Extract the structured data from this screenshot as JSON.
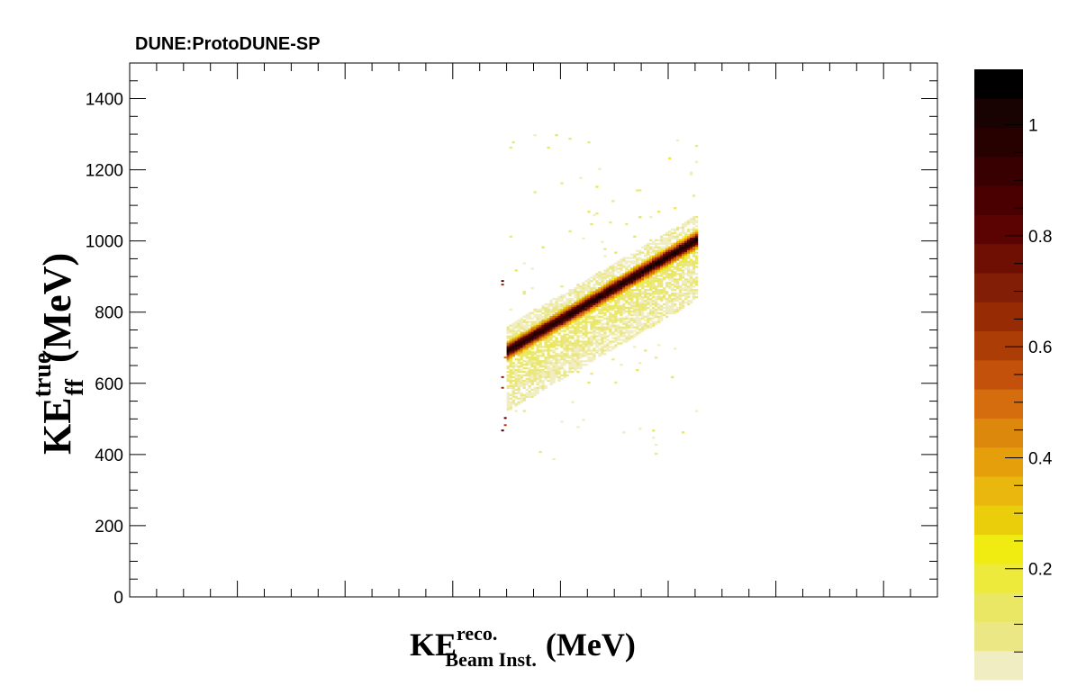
{
  "chart_data": {
    "type": "heatmap",
    "title": "DUNE:ProtoDUNE-SP",
    "xlabel": {
      "main": "KE",
      "sup": "reco.",
      "sub": "Beam  Inst.",
      "unit": "(MeV)"
    },
    "ylabel": {
      "main": "KE",
      "sup": "true",
      "sub": "ff",
      "unit": "(MeV)"
    },
    "xlim": [
      0,
      1500
    ],
    "ylim": [
      0,
      1500
    ],
    "y_ticks": [
      "0",
      "200",
      "400",
      "600",
      "800",
      "1000",
      "1200",
      "1400"
    ],
    "x_tick_labels_shown": false,
    "colorbar": {
      "zlim": [
        0,
        1.1
      ],
      "ticks": [
        "0.2",
        "0.4",
        "0.6",
        "0.8",
        "1"
      ],
      "palette": [
        "#f1edc2",
        "#ebe785",
        "#e9e764",
        "#eeea3b",
        "#f0eb10",
        "#ebce0b",
        "#e9b70e",
        "#e49f0a",
        "#db880d",
        "#d56c0d",
        "#c4510b",
        "#ac3d06",
        "#962b04",
        "#821e06",
        "#6f0f04",
        "#5a0302",
        "#4a0000",
        "#380000",
        "#270000",
        "#190202",
        "#000000"
      ]
    },
    "description_band": {
      "trend_start": [
        700,
        690
      ],
      "trend_end": [
        1050,
        1000
      ],
      "note": "narrow high-density diagonal ridge with broad low-density halo below it"
    },
    "density_cells": [
      {
        "x": 700,
        "y": 695,
        "z": 0.95
      },
      {
        "x": 740,
        "y": 730,
        "z": 1.0
      },
      {
        "x": 780,
        "y": 765,
        "z": 0.95
      },
      {
        "x": 820,
        "y": 800,
        "z": 0.9
      },
      {
        "x": 860,
        "y": 840,
        "z": 0.95
      },
      {
        "x": 900,
        "y": 875,
        "z": 1.0
      },
      {
        "x": 940,
        "y": 910,
        "z": 0.95
      },
      {
        "x": 980,
        "y": 945,
        "z": 0.9
      },
      {
        "x": 1020,
        "y": 980,
        "z": 0.85
      },
      {
        "x": 1050,
        "y": 1000,
        "z": 0.8
      }
    ]
  }
}
